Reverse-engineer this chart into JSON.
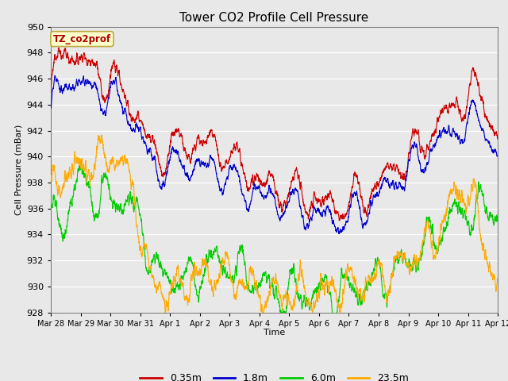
{
  "title": "Tower CO2 Profile Cell Pressure",
  "xlabel": "Time",
  "ylabel": "Cell Pressure (mBar)",
  "ylim": [
    928,
    950
  ],
  "annotation_text": "TZ_co2prof",
  "annotation_bg": "#ffffcc",
  "annotation_border": "#bbaa44",
  "annotation_text_color": "#aa0000",
  "bg_color": "#e8e8e8",
  "grid_color": "#ffffff",
  "series": {
    "0.35m": {
      "color": "#cc0000",
      "linewidth": 0.8
    },
    "1.8m": {
      "color": "#0000cc",
      "linewidth": 0.8
    },
    "6.0m": {
      "color": "#00cc00",
      "linewidth": 0.8
    },
    "23.5m": {
      "color": "#ffaa00",
      "linewidth": 0.8
    }
  },
  "xtick_labels": [
    "Mar 28",
    "Mar 29",
    "Mar 30",
    "Mar 31",
    "Apr 1",
    "Apr 2",
    "Apr 3",
    "Apr 4",
    "Apr 5",
    "Apr 6",
    "Apr 7",
    "Apr 8",
    "Apr 9",
    "Apr 10",
    "Apr 11",
    "Apr 12"
  ],
  "ytick_values": [
    928,
    930,
    932,
    934,
    936,
    938,
    940,
    942,
    944,
    946,
    948,
    950
  ],
  "n_points": 2880,
  "title_fontsize": 11,
  "label_fontsize": 8,
  "tick_fontsize": 8
}
